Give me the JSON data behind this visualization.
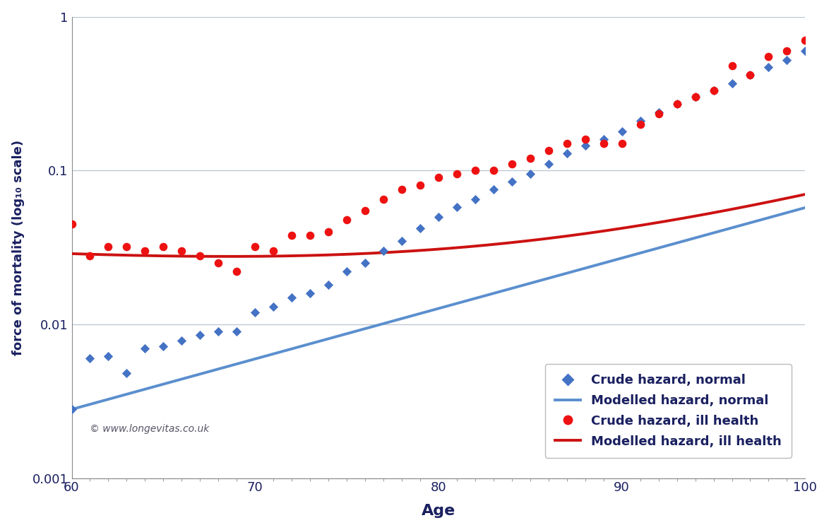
{
  "xlabel": "Age",
  "ylabel": "force of mortality (log₁₀ scale)",
  "xlim": [
    60,
    100
  ],
  "background_color": "#ffffff",
  "grid_color": "#b8c4d0",
  "annotation": "© www.longevitas.co.uk",
  "normal_crude_color": "#4472c4",
  "ill_crude_color": "#ee1111",
  "normal_model_color": "#5b8fce",
  "ill_model_color": "#cc1111",
  "normal_crude_x": [
    60,
    61,
    62,
    63,
    64,
    65,
    66,
    67,
    68,
    69,
    70,
    71,
    72,
    73,
    74,
    75,
    76,
    77,
    78,
    79,
    80,
    81,
    82,
    83,
    84,
    85,
    86,
    87,
    88,
    89,
    90,
    91,
    92,
    93,
    94,
    95,
    96,
    97,
    98,
    99,
    100
  ],
  "normal_crude_y": [
    0.0028,
    0.006,
    0.0062,
    0.0048,
    0.007,
    0.0072,
    0.0078,
    0.0085,
    0.009,
    0.009,
    0.012,
    0.013,
    0.015,
    0.016,
    0.018,
    0.022,
    0.025,
    0.03,
    0.035,
    0.042,
    0.05,
    0.058,
    0.065,
    0.075,
    0.085,
    0.095,
    0.11,
    0.13,
    0.145,
    0.16,
    0.18,
    0.21,
    0.24,
    0.27,
    0.3,
    0.33,
    0.37,
    0.42,
    0.47,
    0.52,
    0.6
  ],
  "ill_crude_x": [
    60,
    61,
    62,
    63,
    64,
    65,
    66,
    67,
    68,
    69,
    70,
    71,
    72,
    73,
    74,
    75,
    76,
    77,
    78,
    79,
    80,
    81,
    82,
    83,
    84,
    85,
    86,
    87,
    88,
    89,
    90,
    91,
    92,
    93,
    94,
    95,
    96,
    97,
    98,
    99,
    100
  ],
  "ill_crude_y": [
    0.045,
    0.028,
    0.032,
    0.032,
    0.03,
    0.032,
    0.03,
    0.028,
    0.025,
    0.022,
    0.032,
    0.03,
    0.038,
    0.038,
    0.04,
    0.048,
    0.055,
    0.065,
    0.075,
    0.08,
    0.09,
    0.095,
    0.1,
    0.1,
    0.11,
    0.12,
    0.135,
    0.15,
    0.16,
    0.15,
    0.15,
    0.2,
    0.235,
    0.27,
    0.3,
    0.33,
    0.48,
    0.42,
    0.55,
    0.6,
    0.7
  ],
  "normal_model_gompertz": {
    "a": 0.0028,
    "b": 0.0755
  },
  "ill_model_params": {
    "A": 0.026,
    "decay": 0.018,
    "B": 0.0028,
    "b": 0.0755
  }
}
